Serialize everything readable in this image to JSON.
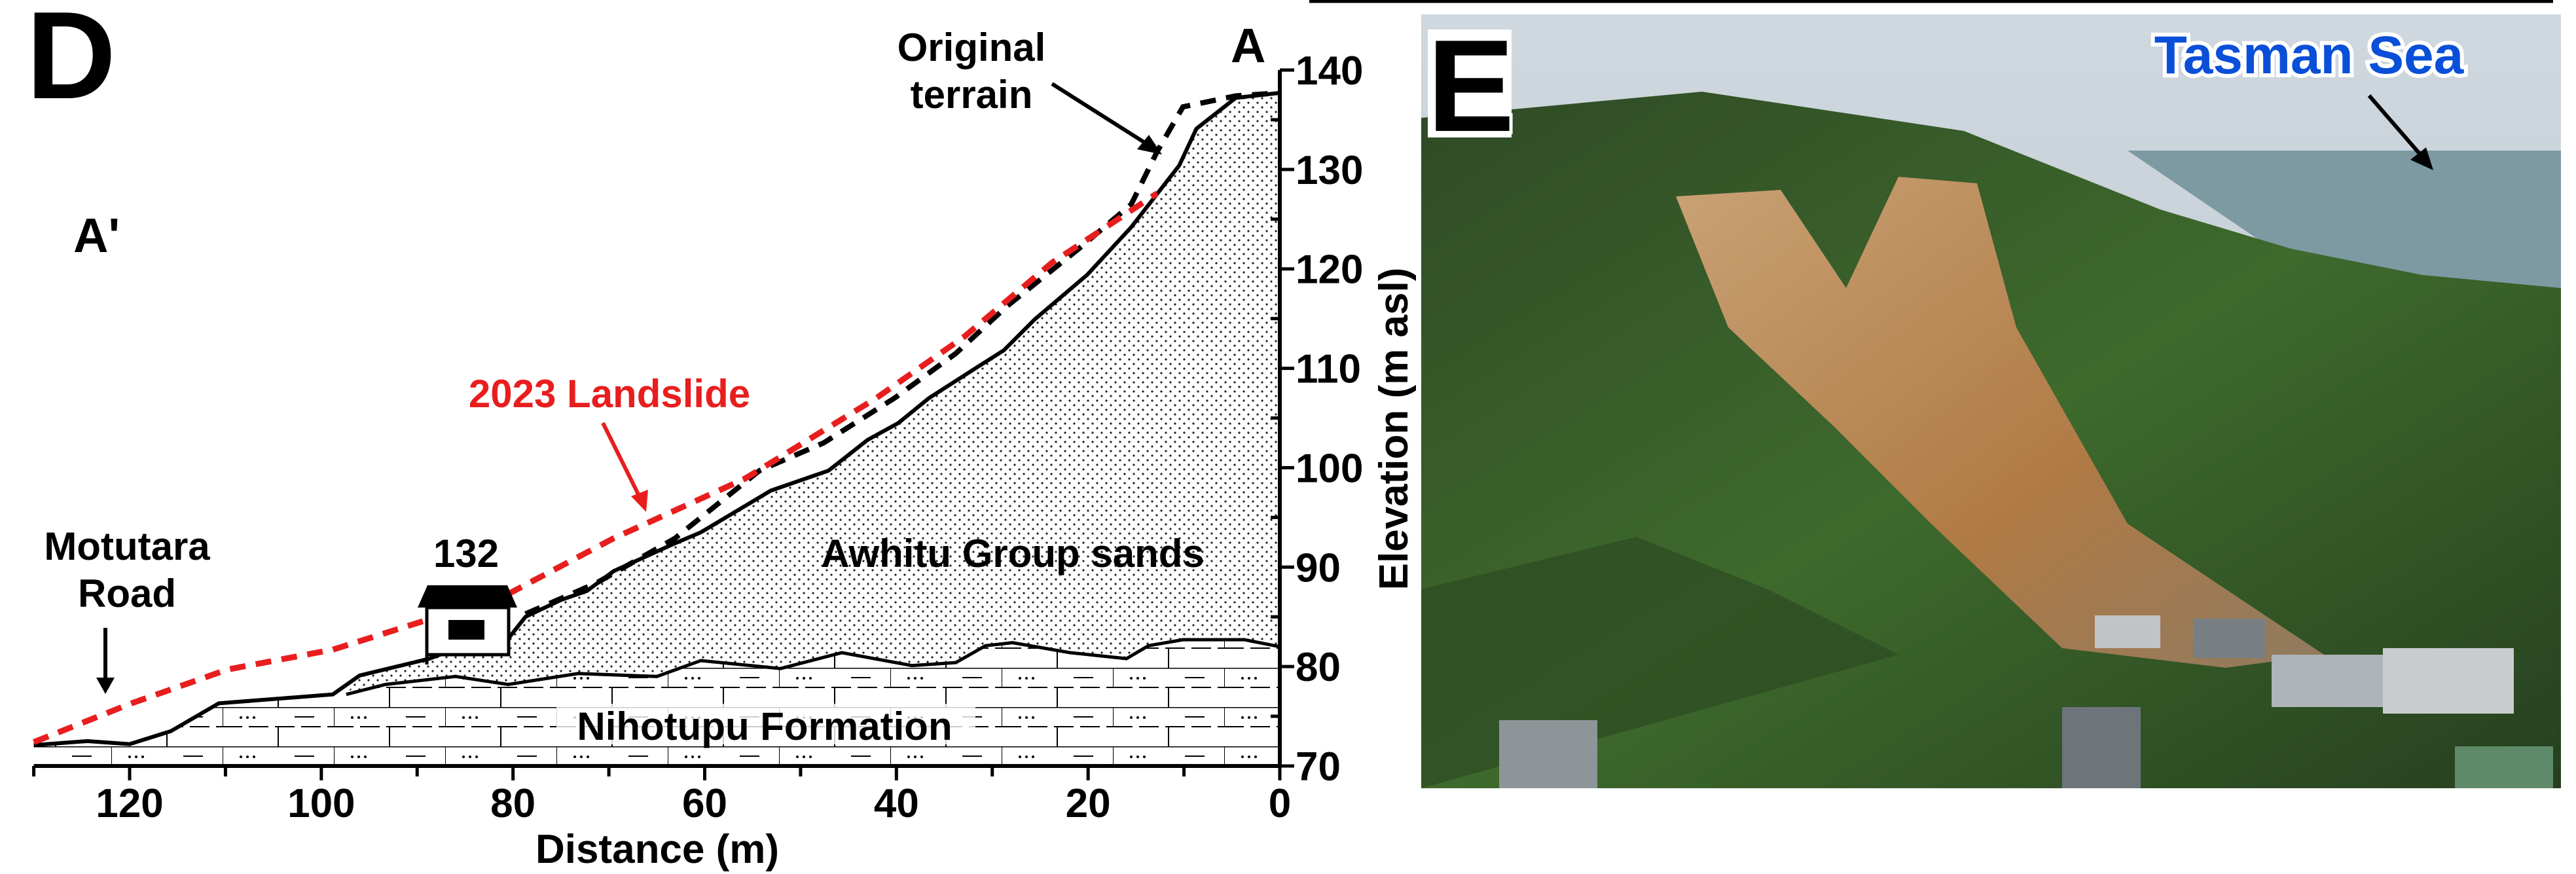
{
  "chart_data": {
    "type": "line",
    "panel_label": "D",
    "xlabel": "Distance (m)",
    "ylabel": "Elevation (m asl)",
    "xlim": [
      130,
      0
    ],
    "ylim": [
      70,
      140
    ],
    "x_ticks": [
      120,
      100,
      80,
      60,
      40,
      20,
      0
    ],
    "y_ticks": [
      70,
      80,
      90,
      100,
      110,
      120,
      130,
      140
    ],
    "grid": false,
    "colors": {
      "landslide": "#e81e1e",
      "terrain": "#000000",
      "original": "#000000"
    },
    "series": [
      {
        "name": "2023 Landslide",
        "style": "dashed-red",
        "points": [
          [
            130,
            72.4
          ],
          [
            119.8,
            76.3
          ],
          [
            109.8,
            79.7
          ],
          [
            98.8,
            81.7
          ],
          [
            89.6,
            84.5
          ],
          [
            80.5,
            87.3
          ],
          [
            69.5,
            92.9
          ],
          [
            55.8,
            98.9
          ],
          [
            42.1,
            107
          ],
          [
            32.9,
            113.2
          ],
          [
            23.8,
            120.6
          ],
          [
            12.8,
            127.6
          ]
        ]
      },
      {
        "name": "Original terrain",
        "style": "dashed-black",
        "points": [
          [
            78.7,
            85.3
          ],
          [
            71.3,
            88.4
          ],
          [
            63.1,
            92.9
          ],
          [
            54.3,
            99.7
          ],
          [
            47.6,
            102.5
          ],
          [
            40.2,
            107
          ],
          [
            33.8,
            111.5
          ],
          [
            28.4,
            116.3
          ],
          [
            21,
            122
          ],
          [
            15.5,
            126.5
          ],
          [
            12.8,
            131.8
          ],
          [
            10.1,
            136.3
          ],
          [
            4.6,
            137.4
          ],
          [
            0,
            137.7
          ]
        ]
      },
      {
        "style": "solid-black",
        "points": [
          [
            130,
            72.1
          ],
          [
            124.4,
            72.5
          ],
          [
            120,
            72.2
          ],
          [
            115.7,
            73.5
          ],
          [
            110.7,
            76.3
          ],
          [
            98.8,
            77.2
          ],
          [
            96,
            79.1
          ],
          [
            88.7,
            80.8
          ],
          [
            84.1,
            82.5
          ],
          [
            80.5,
            82.8
          ],
          [
            78.7,
            85
          ],
          [
            75,
            86.7
          ],
          [
            72.3,
            87.6
          ],
          [
            69.5,
            89.6
          ],
          [
            63.1,
            92.4
          ],
          [
            60.4,
            93.5
          ],
          [
            53.1,
            97.7
          ],
          [
            47.1,
            99.7
          ],
          [
            43,
            102.8
          ],
          [
            39.8,
            104.5
          ],
          [
            36.6,
            107
          ],
          [
            31.6,
            110.1
          ],
          [
            28.8,
            111.8
          ],
          [
            25.6,
            114.9
          ],
          [
            20.1,
            119.4
          ],
          [
            15.5,
            124.2
          ],
          [
            10.5,
            130.4
          ],
          [
            8.7,
            134.1
          ],
          [
            4.6,
            137.2
          ],
          [
            0,
            137.7
          ]
        ]
      },
      {
        "style": "contact",
        "points": [
          [
            97.4,
            77.2
          ],
          [
            93.3,
            78.2
          ],
          [
            86,
            79
          ],
          [
            80.5,
            78.2
          ],
          [
            73.2,
            79.3
          ],
          [
            65,
            79
          ],
          [
            60.4,
            80.6
          ],
          [
            52.1,
            79.8
          ],
          [
            45.7,
            81.4
          ],
          [
            38.4,
            80.1
          ],
          [
            33.8,
            80.4
          ],
          [
            30.7,
            82.1
          ],
          [
            27.9,
            82.4
          ],
          [
            21.9,
            81.4
          ],
          [
            16,
            80.8
          ],
          [
            13.7,
            82.1
          ],
          [
            10.1,
            82.7
          ],
          [
            3.7,
            82.7
          ],
          [
            0,
            82
          ]
        ]
      }
    ],
    "annotations": {
      "a_prime": "A'",
      "a": "A",
      "original_1": "Original",
      "original_2": "terrain",
      "landslide": "2023 Landslide",
      "road_1": "Motutara",
      "road_2": "Road",
      "house": "132",
      "sands": "Awhitu Group sands",
      "formation": "Nihotupu Formation"
    }
  },
  "photo": {
    "panel_label": "E",
    "sea_label": "Tasman Sea",
    "sea_label_color": "#0a4fd8"
  }
}
